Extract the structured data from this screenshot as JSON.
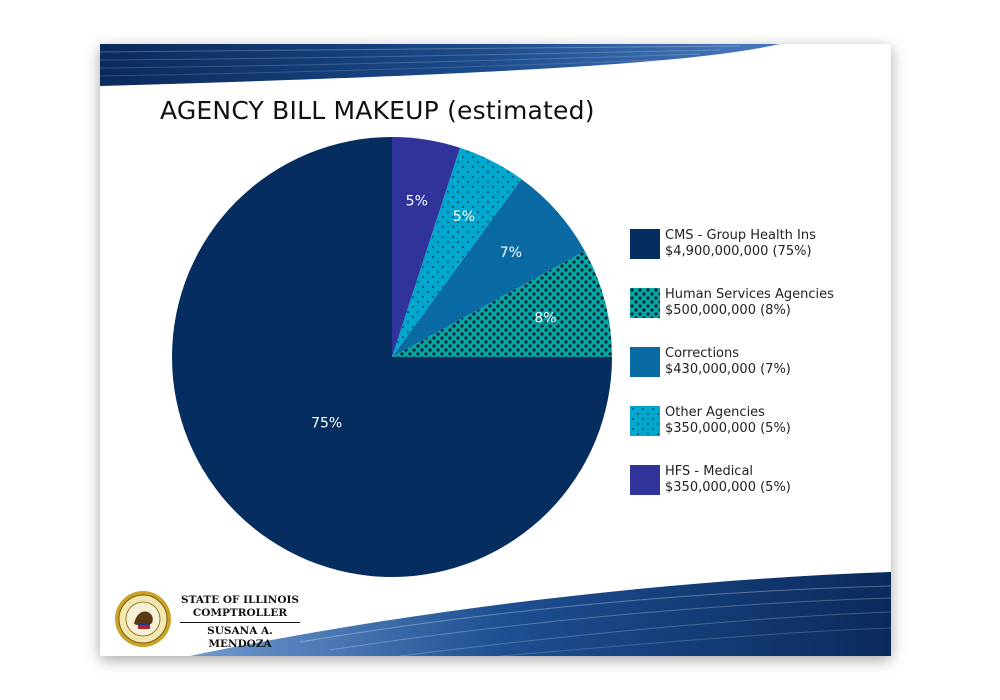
{
  "page": {
    "title": "AGENCY BILL MAKEUP (estimated)"
  },
  "chart_data": {
    "type": "pie",
    "title": "AGENCY BILL MAKEUP (estimated)",
    "slices": [
      {
        "key": "cms",
        "name": "CMS - Group Health Ins",
        "amount": "$4,900,000,000 (75%)",
        "value": 75,
        "label": "75%",
        "color": "#062d5f",
        "pattern": "none"
      },
      {
        "key": "human",
        "name": "Human Services Agencies",
        "amount": "$500,000,000 (8%)",
        "value": 8,
        "label": "8%",
        "color": "#05a6a6",
        "pattern": "dense-dots"
      },
      {
        "key": "corrections",
        "name": "Corrections",
        "amount": "$430,000,000 (7%)",
        "value": 7,
        "label": "7%",
        "color": "#0a6aa3",
        "pattern": "none"
      },
      {
        "key": "other",
        "name": "Other Agencies",
        "amount": "$350,000,000 (5%)",
        "value": 5,
        "label": "5%",
        "color": "#00a7cf",
        "pattern": "sparse-dots"
      },
      {
        "key": "hfs",
        "name": "HFS - Medical",
        "amount": "$350,000,000 (5%)",
        "value": 5,
        "label": "5%",
        "color": "#30339a",
        "pattern": "none"
      }
    ],
    "legend_position": "right"
  },
  "footer": {
    "line1": "STATE OF ILLINOIS",
    "line2": "COMPTROLLER",
    "line3": "SUSANA A. MENDOZA"
  },
  "colors": {
    "band_dark": "#0b2a5c",
    "band_light": "#3f6fb0"
  }
}
